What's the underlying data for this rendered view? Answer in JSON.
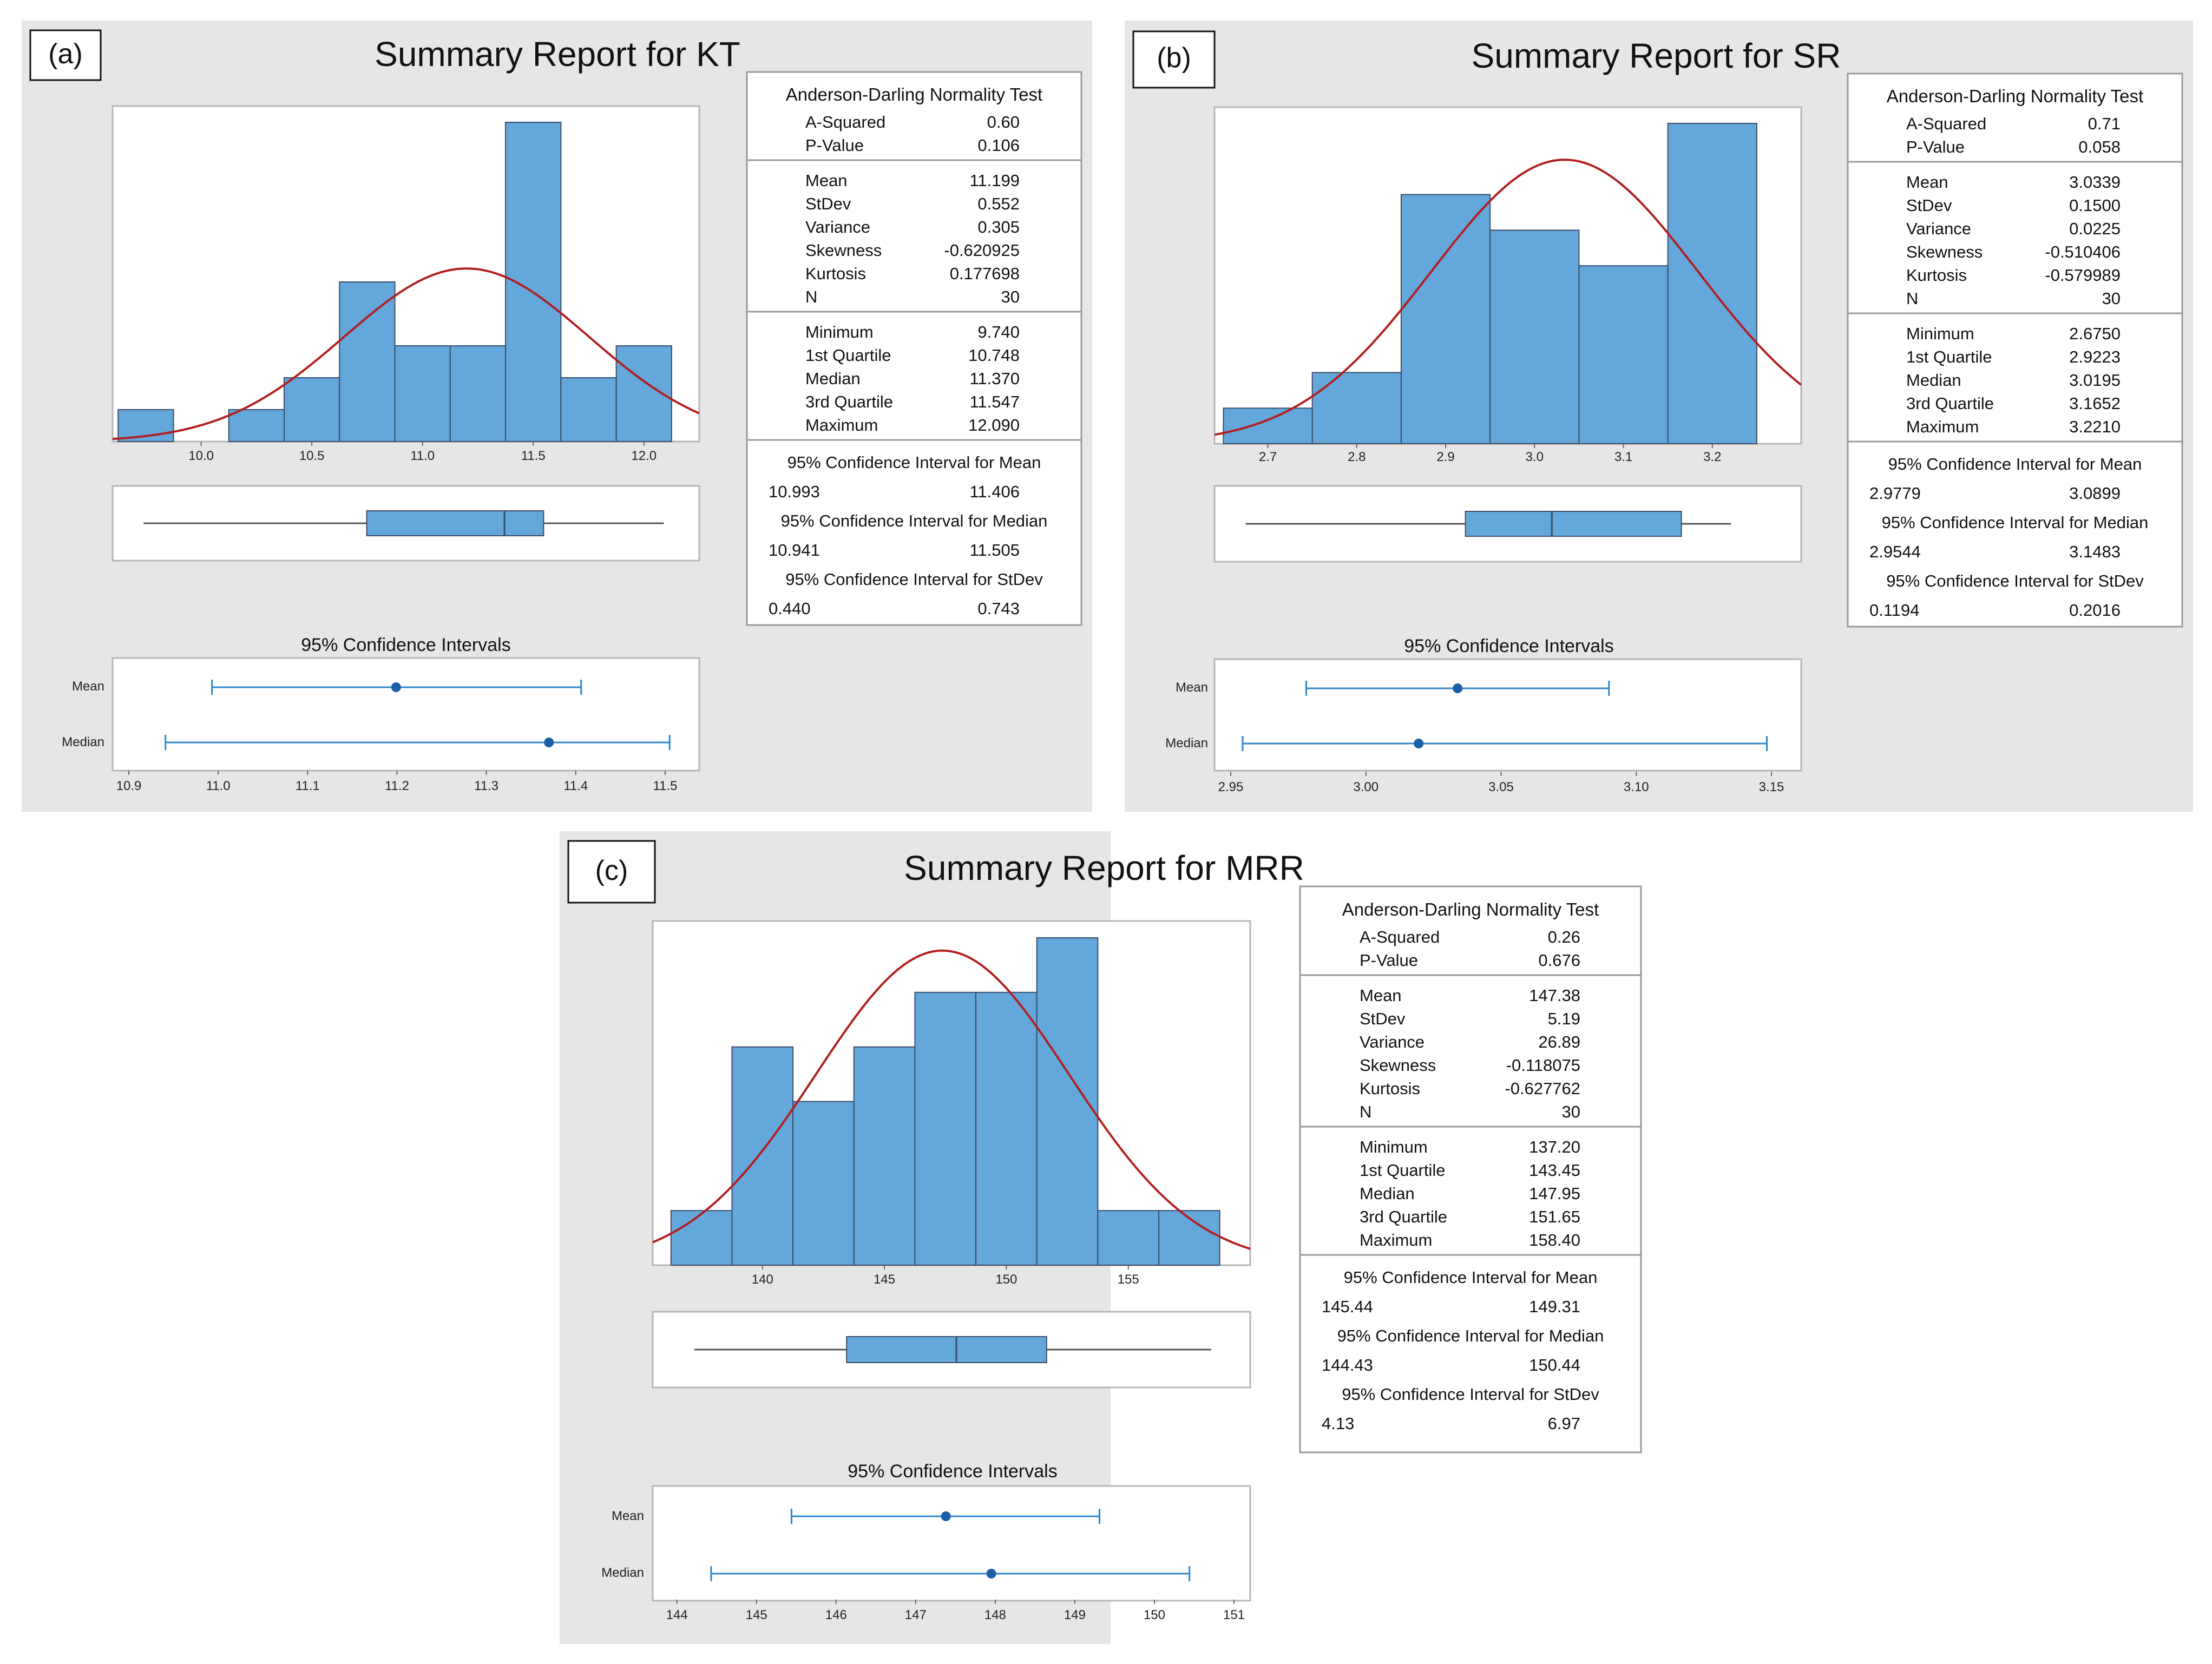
{
  "figure": {
    "panels": [
      {
        "label": "(a)",
        "title": "Summary Report for KT",
        "stats": {
          "ad_heading": "Anderson-Darling Normality Test",
          "ad": [
            [
              "A-Squared",
              "0.60"
            ],
            [
              "P-Value",
              "0.106"
            ]
          ],
          "moments": [
            [
              "Mean",
              "11.199"
            ],
            [
              "StDev",
              "0.552"
            ],
            [
              "Variance",
              "0.305"
            ],
            [
              "Skewness",
              "-0.620925"
            ],
            [
              "Kurtosis",
              "0.177698"
            ],
            [
              "N",
              "30"
            ]
          ],
          "quartiles": [
            [
              "Minimum",
              "9.740"
            ],
            [
              "1st Quartile",
              "10.748"
            ],
            [
              "Median",
              "11.370"
            ],
            [
              "3rd Quartile",
              "11.547"
            ],
            [
              "Maximum",
              "12.090"
            ]
          ],
          "ci": [
            {
              "heading": "95% Confidence Interval for Mean",
              "low": "10.993",
              "high": "11.406"
            },
            {
              "heading": "95% Confidence Interval for Median",
              "low": "10.941",
              "high": "11.505"
            },
            {
              "heading": "95% Confidence Interval for StDev",
              "low": "0.440",
              "high": "0.743"
            }
          ]
        },
        "ci_panel": {
          "title": "95% Confidence Intervals",
          "mean_label": "Mean",
          "median_label": "Median"
        }
      },
      {
        "label": "(b)",
        "title": "Summary Report for SR",
        "stats": {
          "ad_heading": "Anderson-Darling Normality Test",
          "ad": [
            [
              "A-Squared",
              "0.71"
            ],
            [
              "P-Value",
              "0.058"
            ]
          ],
          "moments": [
            [
              "Mean",
              "3.0339"
            ],
            [
              "StDev",
              "0.1500"
            ],
            [
              "Variance",
              "0.0225"
            ],
            [
              "Skewness",
              "-0.510406"
            ],
            [
              "Kurtosis",
              "-0.579989"
            ],
            [
              "N",
              "30"
            ]
          ],
          "quartiles": [
            [
              "Minimum",
              "2.6750"
            ],
            [
              "1st Quartile",
              "2.9223"
            ],
            [
              "Median",
              "3.0195"
            ],
            [
              "3rd Quartile",
              "3.1652"
            ],
            [
              "Maximum",
              "3.2210"
            ]
          ],
          "ci": [
            {
              "heading": "95% Confidence Interval for Mean",
              "low": "2.9779",
              "high": "3.0899"
            },
            {
              "heading": "95% Confidence Interval for Median",
              "low": "2.9544",
              "high": "3.1483"
            },
            {
              "heading": "95% Confidence Interval for StDev",
              "low": "0.1194",
              "high": "0.2016"
            }
          ]
        },
        "ci_panel": {
          "title": "95% Confidence Intervals",
          "mean_label": "Mean",
          "median_label": "Median"
        }
      },
      {
        "label": "(c)",
        "title": "Summary Report for MRR",
        "stats": {
          "ad_heading": "Anderson-Darling Normality Test",
          "ad": [
            [
              "A-Squared",
              "0.26"
            ],
            [
              "P-Value",
              "0.676"
            ]
          ],
          "moments": [
            [
              "Mean",
              "147.38"
            ],
            [
              "StDev",
              "5.19"
            ],
            [
              "Variance",
              "26.89"
            ],
            [
              "Skewness",
              "-0.118075"
            ],
            [
              "Kurtosis",
              "-0.627762"
            ],
            [
              "N",
              "30"
            ]
          ],
          "quartiles": [
            [
              "Minimum",
              "137.20"
            ],
            [
              "1st Quartile",
              "143.45"
            ],
            [
              "Median",
              "147.95"
            ],
            [
              "3rd Quartile",
              "151.65"
            ],
            [
              "Maximum",
              "158.40"
            ]
          ],
          "ci": [
            {
              "heading": "95% Confidence Interval for Mean",
              "low": "145.44",
              "high": "149.31"
            },
            {
              "heading": "95% Confidence Interval for Median",
              "low": "144.43",
              "high": "150.44"
            },
            {
              "heading": "95% Confidence Interval for StDev",
              "low": "4.13",
              "high": "6.97"
            }
          ]
        },
        "ci_panel": {
          "title": "95% Confidence Intervals",
          "mean_label": "Mean",
          "median_label": "Median"
        }
      }
    ],
    "colors": {
      "panel_bg": "#e6e6e6",
      "bar_fill": "#64a7db",
      "bar_stroke": "#3c4c66",
      "curve": "#b21e1e",
      "ci_line": "#2e86c9",
      "ci_dot": "#1a5fa8",
      "whisker": "#555555"
    }
  },
  "chart_data": [
    {
      "type": "bar",
      "title": "Summary Report for KT",
      "xlabel": "",
      "ylabel": "",
      "x_ticks": [
        10.0,
        10.5,
        11.0,
        11.5,
        12.0
      ],
      "x_tick_labels": [
        "10.0",
        "10.5",
        "11.0",
        "11.5",
        "12.0"
      ],
      "xlim": [
        9.6,
        12.25
      ],
      "bin_edges": [
        9.625,
        9.875,
        10.125,
        10.375,
        10.625,
        10.875,
        11.125,
        11.375,
        11.625,
        11.875,
        12.125
      ],
      "values": [
        1,
        0,
        1,
        2,
        5,
        3,
        3,
        10,
        2,
        3
      ],
      "normal_curve": {
        "mean": 11.199,
        "sd": 0.552
      },
      "boxplot": {
        "min": 9.74,
        "q1": 10.748,
        "median": 11.37,
        "q3": 11.547,
        "max": 12.09
      },
      "ci_plot": {
        "xlim": [
          10.9,
          11.52
        ],
        "ticks": [
          10.9,
          11.0,
          11.1,
          11.2,
          11.3,
          11.4,
          11.5
        ],
        "tick_labels": [
          "10.9",
          "11.0",
          "11.1",
          "11.2",
          "11.3",
          "11.4",
          "11.5"
        ],
        "mean": {
          "point": 11.199,
          "low": 10.993,
          "high": 11.406
        },
        "median": {
          "point": 11.37,
          "low": 10.941,
          "high": 11.505
        }
      }
    },
    {
      "type": "bar",
      "title": "Summary Report for SR",
      "xlabel": "",
      "ylabel": "",
      "x_ticks": [
        2.7,
        2.8,
        2.9,
        3.0,
        3.1,
        3.2
      ],
      "x_tick_labels": [
        "2.7",
        "2.8",
        "2.9",
        "3.0",
        "3.1",
        "3.2"
      ],
      "xlim": [
        2.64,
        3.3
      ],
      "bin_edges": [
        2.65,
        2.75,
        2.85,
        2.95,
        3.05,
        3.15,
        3.25
      ],
      "values": [
        1,
        2,
        7,
        6,
        5,
        9
      ],
      "normal_curve": {
        "mean": 3.0339,
        "sd": 0.15
      },
      "boxplot": {
        "min": 2.675,
        "q1": 2.9223,
        "median": 3.0195,
        "q3": 3.1652,
        "max": 3.221
      },
      "ci_plot": {
        "xlim": [
          2.95,
          3.155
        ],
        "ticks": [
          2.95,
          3.0,
          3.05,
          3.1,
          3.15
        ],
        "tick_labels": [
          "2.95",
          "3.00",
          "3.05",
          "3.10",
          "3.15"
        ],
        "mean": {
          "point": 3.0339,
          "low": 2.9779,
          "high": 3.0899
        },
        "median": {
          "point": 3.0195,
          "low": 2.9544,
          "high": 3.1483
        }
      }
    },
    {
      "type": "bar",
      "title": "Summary Report for MRR",
      "xlabel": "",
      "ylabel": "",
      "x_ticks": [
        140,
        145,
        150,
        155
      ],
      "x_tick_labels": [
        "140",
        "145",
        "150",
        "155"
      ],
      "xlim": [
        135.5,
        160.0
      ],
      "bin_edges": [
        136.25,
        138.75,
        141.25,
        143.75,
        146.25,
        148.75,
        151.25,
        153.75,
        156.25,
        158.75
      ],
      "values": [
        1,
        4,
        3,
        4,
        5,
        5,
        6,
        1,
        1
      ],
      "normal_curve": {
        "mean": 147.38,
        "sd": 5.19
      },
      "boxplot": {
        "min": 137.2,
        "q1": 143.45,
        "median": 147.95,
        "q3": 151.65,
        "max": 158.4
      },
      "ci_plot": {
        "xlim": [
          143.9,
          151.0
        ],
        "ticks": [
          144,
          145,
          146,
          147,
          148,
          149,
          150,
          151
        ],
        "tick_labels": [
          "144",
          "145",
          "146",
          "147",
          "148",
          "149",
          "150",
          "151"
        ],
        "mean": {
          "point": 147.38,
          "low": 145.44,
          "high": 149.31
        },
        "median": {
          "point": 147.95,
          "low": 144.43,
          "high": 150.44
        }
      }
    }
  ]
}
